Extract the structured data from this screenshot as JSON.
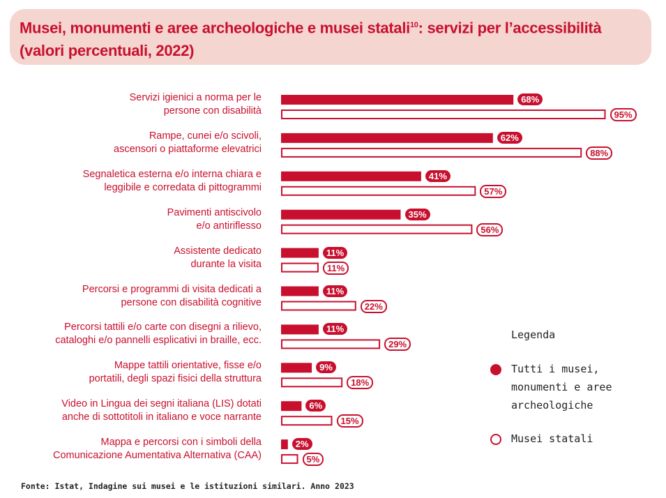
{
  "chart_data": {
    "type": "bar",
    "orientation": "horizontal",
    "title": "Musei, monumenti e aree archeologiche e musei statali",
    "title_footnote": "10",
    "title_rest": ": servizi per l’accessibilità",
    "subtitle": "(valori percentuali, 2022)",
    "categories": [
      [
        "Servizi igienici a norma per le",
        "persone con disabilità"
      ],
      [
        "Rampe, cunei e/o scivoli,",
        "ascensori o piattaforme elevatrici"
      ],
      [
        "Segnaletica esterna e/o interna chiara e",
        "leggibile e corredata di pittogrammi"
      ],
      [
        "Pavimenti antiscivolo",
        "e/o antiriflesso"
      ],
      [
        "Assistente dedicato",
        "durante la visita"
      ],
      [
        "Percorsi e programmi di visita dedicati a",
        "persone con disabilità cognitive"
      ],
      [
        "Percorsi tattili e/o carte con disegni a rilievo,",
        "cataloghi e/o pannelli esplicativi in braille, ecc."
      ],
      [
        "Mappe tattili orientative, fisse e/o",
        "portatili, degli spazi fisici della struttura"
      ],
      [
        "Video in Lingua dei segni italiana (LIS) dotati",
        "anche di sottotitoli in italiano e voce narrante"
      ],
      [
        "Mappa e percorsi con i simboli della",
        "Comunicazione Aumentativa Alternativa (CAA)"
      ]
    ],
    "series": [
      {
        "name": "Tutti i musei, monumenti e aree archeologiche",
        "style": "filled",
        "color": "#c8102e",
        "values": [
          68,
          62,
          41,
          35,
          11,
          11,
          11,
          9,
          6,
          2
        ]
      },
      {
        "name": "Musei statali",
        "style": "outline",
        "color": "#c8102e",
        "values": [
          95,
          88,
          57,
          56,
          11,
          22,
          29,
          18,
          15,
          5
        ]
      }
    ],
    "value_suffix": "%",
    "xlim": [
      0,
      100
    ],
    "grid": false,
    "legend_title": "Legenda",
    "legend_position": "right",
    "legend_lines": [
      [
        "Tutti i musei,",
        "monumenti e aree",
        "archeologiche"
      ],
      [
        "Musei statali"
      ]
    ]
  },
  "source": "Fonte: Istat, Indagine sui musei e le istituzioni similari. Anno 2023"
}
